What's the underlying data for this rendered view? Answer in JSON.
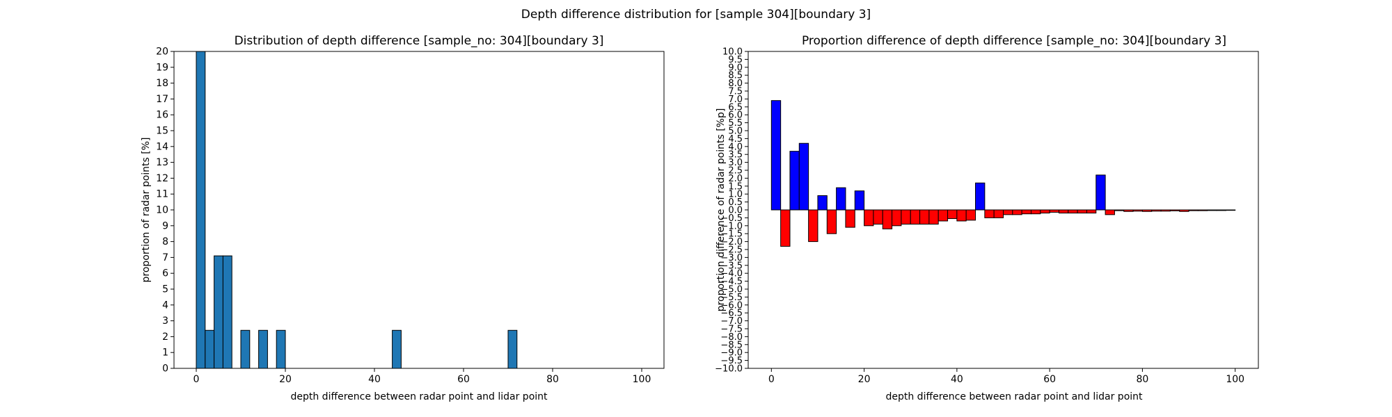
{
  "suptitle": "Depth difference distribution for [sample 304][boundary 3]",
  "colors": {
    "hist": "#1f77b4",
    "positive": "#0000ff",
    "negative": "#ff0000",
    "edge": "#000000"
  },
  "chart_data": [
    {
      "type": "bar",
      "title": "Distribution of depth difference [sample_no: 304][boundary 3]",
      "xlabel": "depth difference between radar point and lidar point",
      "ylabel": "proportion of radar points [%]",
      "bin_width": 2,
      "xlim": [
        -5,
        105
      ],
      "ylim": [
        0,
        20
      ],
      "xticks": [
        0,
        20,
        40,
        60,
        80,
        100
      ],
      "yticks": [
        0,
        1,
        2,
        3,
        4,
        5,
        6,
        7,
        8,
        9,
        10,
        11,
        12,
        13,
        14,
        15,
        16,
        17,
        18,
        19,
        20
      ],
      "x": [
        0,
        2,
        4,
        6,
        10,
        14,
        18,
        44,
        70
      ],
      "values": [
        20,
        2.4,
        7.1,
        7.1,
        2.4,
        2.4,
        2.4,
        2.4,
        2.4
      ]
    },
    {
      "type": "bar",
      "title": "Proportion difference of depth difference [sample_no: 304][boundary 3]",
      "xlabel": "depth difference between radar point and lidar point",
      "ylabel": "proportion difference of radar points [%p]",
      "bin_width": 2,
      "xlim": [
        -5,
        105
      ],
      "ylim": [
        -10,
        10
      ],
      "xticks": [
        0,
        20,
        40,
        60,
        80,
        100
      ],
      "ytick_step": 0.5,
      "x": [
        0,
        2,
        4,
        6,
        8,
        10,
        12,
        14,
        16,
        18,
        20,
        22,
        24,
        26,
        28,
        30,
        32,
        34,
        36,
        38,
        40,
        42,
        44,
        46,
        48,
        50,
        52,
        54,
        56,
        58,
        60,
        62,
        64,
        66,
        68,
        70,
        72,
        74,
        76,
        78,
        80,
        82,
        84,
        86,
        88,
        90,
        92,
        94,
        96,
        98
      ],
      "values": [
        6.9,
        -2.3,
        3.7,
        4.2,
        -2.0,
        0.9,
        -1.5,
        1.4,
        -1.1,
        1.2,
        -1.0,
        -0.9,
        -1.2,
        -1.0,
        -0.9,
        -0.9,
        -0.9,
        -0.9,
        -0.7,
        -0.55,
        -0.7,
        -0.65,
        1.7,
        -0.5,
        -0.5,
        -0.3,
        -0.3,
        -0.25,
        -0.25,
        -0.2,
        -0.15,
        -0.2,
        -0.2,
        -0.2,
        -0.2,
        2.2,
        -0.3,
        -0.05,
        -0.1,
        -0.08,
        -0.1,
        -0.08,
        -0.08,
        -0.06,
        -0.1,
        -0.05,
        -0.05,
        -0.04,
        -0.04,
        -0.03
      ]
    }
  ]
}
